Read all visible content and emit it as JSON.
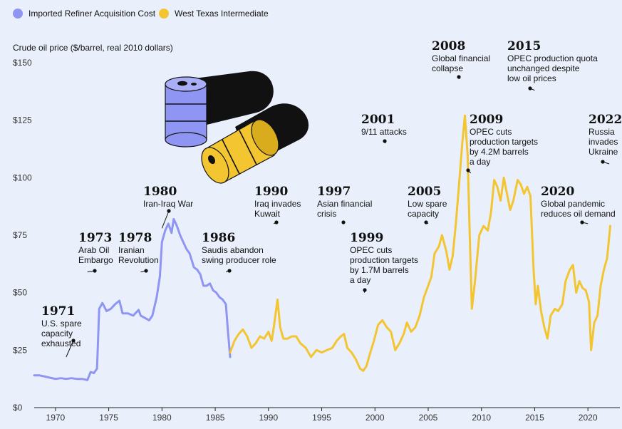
{
  "chart_data": {
    "type": "line",
    "ylabel": "Crude oil price ($/barrel, real 2010 dollars)",
    "ylim": [
      0,
      150
    ],
    "yticks": [
      0,
      25,
      50,
      75,
      100,
      125,
      150
    ],
    "ytick_labels": [
      "$0",
      "$25",
      "$50",
      "$75",
      "$100",
      "$125",
      "$150"
    ],
    "xlim": [
      1968,
      2023
    ],
    "xticks": [
      1970,
      1975,
      1980,
      1985,
      1990,
      1995,
      2000,
      2005,
      2010,
      2015,
      2020
    ],
    "xtick_labels": [
      "1970",
      "1975",
      "1980",
      "1985",
      "1990",
      "1995",
      "2000",
      "2005",
      "2010",
      "2015",
      "2020"
    ],
    "legend": [
      {
        "name": "Imported Refiner Acquisition Cost",
        "color": "#8e95f2"
      },
      {
        "name": "West Texas Intermediate",
        "color": "#f2c531"
      }
    ],
    "series": [
      {
        "name": "Imported Refiner Acquisition Cost",
        "color": "#8e95f2",
        "points": [
          [
            1968,
            14
          ],
          [
            1968.5,
            14
          ],
          [
            1969,
            13.5
          ],
          [
            1969.5,
            13
          ],
          [
            1970,
            12.5
          ],
          [
            1970.5,
            12.8
          ],
          [
            1971,
            12.5
          ],
          [
            1971.5,
            12.8
          ],
          [
            1972,
            12.5
          ],
          [
            1972.5,
            12.5
          ],
          [
            1973,
            12
          ],
          [
            1973.3,
            15.5
          ],
          [
            1973.6,
            15
          ],
          [
            1973.9,
            17
          ],
          [
            1974.1,
            43
          ],
          [
            1974.4,
            45.5
          ],
          [
            1974.8,
            42
          ],
          [
            1975.2,
            43
          ],
          [
            1975.6,
            45
          ],
          [
            1976,
            46.5
          ],
          [
            1976.3,
            41
          ],
          [
            1976.8,
            41
          ],
          [
            1977.3,
            40
          ],
          [
            1977.8,
            42.5
          ],
          [
            1978,
            40
          ],
          [
            1978.4,
            39
          ],
          [
            1978.8,
            38
          ],
          [
            1979.1,
            40
          ],
          [
            1979.5,
            48
          ],
          [
            1979.8,
            57
          ],
          [
            1980,
            72
          ],
          [
            1980.3,
            77
          ],
          [
            1980.6,
            80
          ],
          [
            1980.9,
            76
          ],
          [
            1981.1,
            82
          ],
          [
            1981.4,
            79
          ],
          [
            1981.7,
            75
          ],
          [
            1982,
            72
          ],
          [
            1982.3,
            69
          ],
          [
            1982.6,
            67
          ],
          [
            1983,
            61
          ],
          [
            1983.3,
            60
          ],
          [
            1983.6,
            58
          ],
          [
            1983.9,
            53
          ],
          [
            1984.2,
            53
          ],
          [
            1984.5,
            54
          ],
          [
            1984.8,
            51
          ],
          [
            1985.1,
            50
          ],
          [
            1985.4,
            48
          ],
          [
            1985.7,
            47
          ],
          [
            1986,
            45
          ],
          [
            1986.2,
            33
          ],
          [
            1986.4,
            22
          ]
        ]
      },
      {
        "name": "West Texas Intermediate",
        "color": "#f2c531",
        "points": [
          [
            1986.4,
            24
          ],
          [
            1986.8,
            29
          ],
          [
            1987.2,
            32
          ],
          [
            1987.6,
            34
          ],
          [
            1988,
            31
          ],
          [
            1988.4,
            26
          ],
          [
            1988.8,
            28
          ],
          [
            1989.2,
            31
          ],
          [
            1989.6,
            30
          ],
          [
            1990,
            33
          ],
          [
            1990.3,
            29
          ],
          [
            1990.5,
            35
          ],
          [
            1990.7,
            42
          ],
          [
            1990.85,
            47
          ],
          [
            1991.1,
            35
          ],
          [
            1991.4,
            30
          ],
          [
            1991.8,
            30
          ],
          [
            1992.2,
            31
          ],
          [
            1992.6,
            31
          ],
          [
            1993,
            28
          ],
          [
            1993.5,
            26
          ],
          [
            1994,
            22
          ],
          [
            1994.5,
            25
          ],
          [
            1995,
            24
          ],
          [
            1995.5,
            25
          ],
          [
            1996,
            26
          ],
          [
            1996.4,
            29
          ],
          [
            1996.8,
            31
          ],
          [
            1997.1,
            32
          ],
          [
            1997.4,
            26
          ],
          [
            1997.8,
            24
          ],
          [
            1998.2,
            21
          ],
          [
            1998.6,
            17
          ],
          [
            1998.9,
            16
          ],
          [
            1999.2,
            18
          ],
          [
            1999.5,
            23
          ],
          [
            1999.9,
            29
          ],
          [
            2000.3,
            36
          ],
          [
            2000.7,
            38
          ],
          [
            2001.1,
            35
          ],
          [
            2001.5,
            33
          ],
          [
            2001.9,
            25
          ],
          [
            2002.3,
            28
          ],
          [
            2002.7,
            32
          ],
          [
            2003,
            37
          ],
          [
            2003.4,
            33
          ],
          [
            2003.8,
            35
          ],
          [
            2004.2,
            40
          ],
          [
            2004.6,
            48
          ],
          [
            2005,
            53
          ],
          [
            2005.3,
            57
          ],
          [
            2005.6,
            67
          ],
          [
            2006,
            70
          ],
          [
            2006.3,
            75
          ],
          [
            2006.7,
            68
          ],
          [
            2007,
            60
          ],
          [
            2007.3,
            66
          ],
          [
            2007.6,
            80
          ],
          [
            2007.9,
            97
          ],
          [
            2008.2,
            115
          ],
          [
            2008.45,
            127
          ],
          [
            2008.7,
            110
          ],
          [
            2008.9,
            75
          ],
          [
            2009.1,
            43
          ],
          [
            2009.4,
            55
          ],
          [
            2009.8,
            75
          ],
          [
            2010.2,
            79
          ],
          [
            2010.6,
            77
          ],
          [
            2010.9,
            85
          ],
          [
            2011.2,
            99
          ],
          [
            2011.5,
            96
          ],
          [
            2011.8,
            90
          ],
          [
            2012.1,
            100
          ],
          [
            2012.4,
            93
          ],
          [
            2012.7,
            86
          ],
          [
            2013,
            90
          ],
          [
            2013.4,
            99
          ],
          [
            2013.7,
            97
          ],
          [
            2014,
            93
          ],
          [
            2014.3,
            96
          ],
          [
            2014.6,
            92
          ],
          [
            2014.9,
            60
          ],
          [
            2015.1,
            45
          ],
          [
            2015.3,
            53
          ],
          [
            2015.6,
            42
          ],
          [
            2015.9,
            35
          ],
          [
            2016.2,
            30
          ],
          [
            2016.5,
            40
          ],
          [
            2016.9,
            43
          ],
          [
            2017.2,
            42
          ],
          [
            2017.6,
            45
          ],
          [
            2017.9,
            55
          ],
          [
            2018.3,
            60
          ],
          [
            2018.6,
            62
          ],
          [
            2018.9,
            50
          ],
          [
            2019.2,
            55
          ],
          [
            2019.5,
            52
          ],
          [
            2019.8,
            51
          ],
          [
            2020.1,
            46
          ],
          [
            2020.3,
            25
          ],
          [
            2020.6,
            37
          ],
          [
            2020.9,
            40
          ],
          [
            2021.2,
            53
          ],
          [
            2021.5,
            60
          ],
          [
            2021.8,
            65
          ],
          [
            2022.1,
            79
          ]
        ]
      }
    ],
    "annotations": [
      {
        "year": "1971",
        "lines": [
          "U.S. spare",
          "capacity",
          "exhausted"
        ],
        "x": 1971,
        "y": 22
      },
      {
        "year": "1973",
        "lines": [
          "Arab Oil",
          "Embargo"
        ],
        "x": 1973,
        "y": 59
      },
      {
        "year": "1978",
        "lines": [
          "Iranian",
          "Revolution"
        ],
        "x": 1978,
        "y": 59
      },
      {
        "year": "1980",
        "lines": [
          "Iran-Iraq War"
        ],
        "x": 1980,
        "y": 78
      },
      {
        "year": "1986",
        "lines": [
          "Saudis abandon",
          "swing producer role"
        ],
        "x": 1986,
        "y": 59
      },
      {
        "year": "1990",
        "lines": [
          "Iraq invades",
          "Kuwait"
        ],
        "x": 1990.5,
        "y": 80
      },
      {
        "year": "1997",
        "lines": [
          "Asian financial",
          "crisis"
        ],
        "x": 1997,
        "y": 80
      },
      {
        "year": "1999",
        "lines": [
          "OPEC cuts",
          "production targets",
          "by 1.7M barrels",
          "a day"
        ],
        "x": 1999,
        "y": 50
      },
      {
        "year": "2001",
        "lines": [
          "9/11 attacks"
        ],
        "x": 2001,
        "y": 115
      },
      {
        "year": "2005",
        "lines": [
          "Low spare",
          "capacity"
        ],
        "x": 2005,
        "y": 80
      },
      {
        "year": "2008",
        "lines": [
          "Global financial",
          "collapse"
        ],
        "x": 2008,
        "y": 143
      },
      {
        "year": "2009",
        "lines": [
          "OPEC cuts",
          "production targets",
          "by 4.2M barrels",
          "a day"
        ],
        "x": 2009,
        "y": 102
      },
      {
        "year": "2015",
        "lines": [
          "OPEC production quota",
          "unchanged despite",
          "low oil prices"
        ],
        "x": 2015,
        "y": 138
      },
      {
        "year": "2020",
        "lines": [
          "Global pandemic",
          "reduces oil demand"
        ],
        "x": 2020,
        "y": 80
      },
      {
        "year": "2022",
        "lines": [
          "Russia",
          "invades",
          "Ukraine"
        ],
        "x": 2022,
        "y": 106
      }
    ]
  },
  "barrel_colors": {
    "front": "#f2c531",
    "back": "#8e95f2",
    "shadow": "#111111"
  }
}
